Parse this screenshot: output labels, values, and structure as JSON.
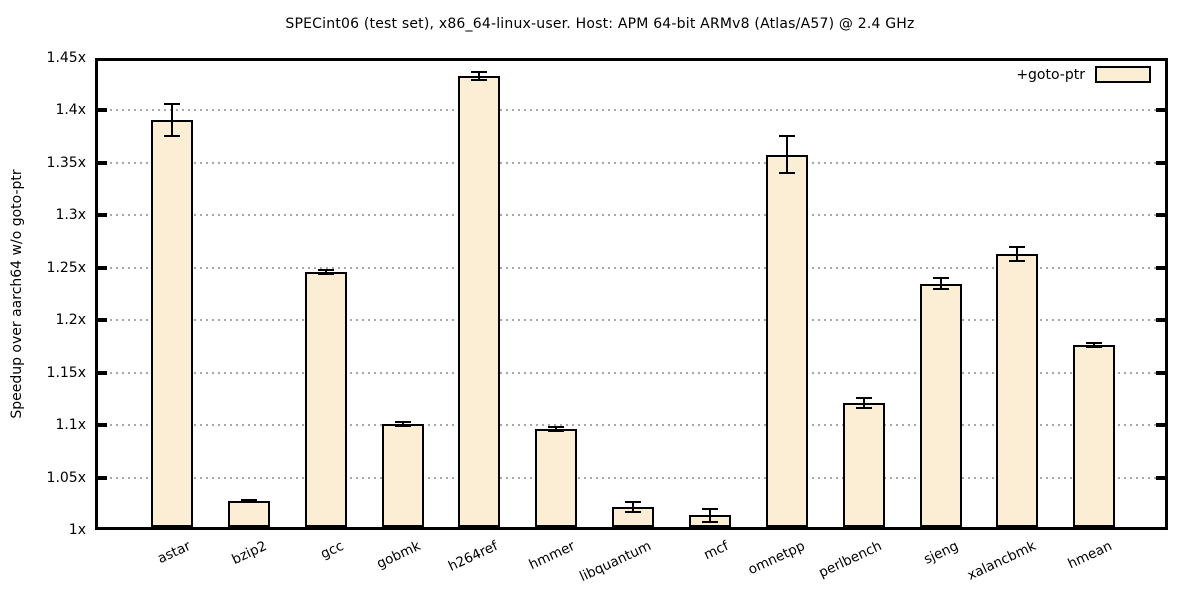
{
  "colors": {
    "bar_fill": "#fcedd5",
    "bar_border": "#000000",
    "grid": "#a8a8a8",
    "frame": "#000000",
    "background": "#ffffff"
  },
  "chart_data": {
    "type": "bar",
    "title": "SPECint06 (test set), x86_64-linux-user. Host: APM 64-bit ARMv8 (Atlas/A57) @ 2.4 GHz",
    "xlabel": "",
    "ylabel": "Speedup over aarch64 w/o goto-ptr",
    "ylim": [
      1.0,
      1.45
    ],
    "grid": true,
    "legend_position": "top-right",
    "categories": [
      "astar",
      "bzip2",
      "gcc",
      "gobmk",
      "h264ref",
      "hmmer",
      "libquantum",
      "mcf",
      "omnetpp",
      "perlbench",
      "sjeng",
      "xalancbmk",
      "hmean"
    ],
    "series": [
      {
        "name": "+goto-ptr",
        "values": [
          1.391,
          1.028,
          1.246,
          1.101,
          1.433,
          1.096,
          1.022,
          1.014,
          1.358,
          1.121,
          1.235,
          1.263,
          1.176
        ],
        "errors": [
          0.015,
          0.001,
          0.002,
          0.002,
          0.004,
          0.002,
          0.005,
          0.006,
          0.018,
          0.005,
          0.005,
          0.007,
          0.002
        ]
      }
    ],
    "yticks": [
      {
        "v": 1.0,
        "label": "1x"
      },
      {
        "v": 1.05,
        "label": "1.05x"
      },
      {
        "v": 1.1,
        "label": "1.1x"
      },
      {
        "v": 1.15,
        "label": "1.15x"
      },
      {
        "v": 1.2,
        "label": "1.2x"
      },
      {
        "v": 1.25,
        "label": "1.25x"
      },
      {
        "v": 1.3,
        "label": "1.3x"
      },
      {
        "v": 1.35,
        "label": "1.35x"
      },
      {
        "v": 1.4,
        "label": "1.4x"
      },
      {
        "v": 1.45,
        "label": "1.45x"
      }
    ]
  }
}
